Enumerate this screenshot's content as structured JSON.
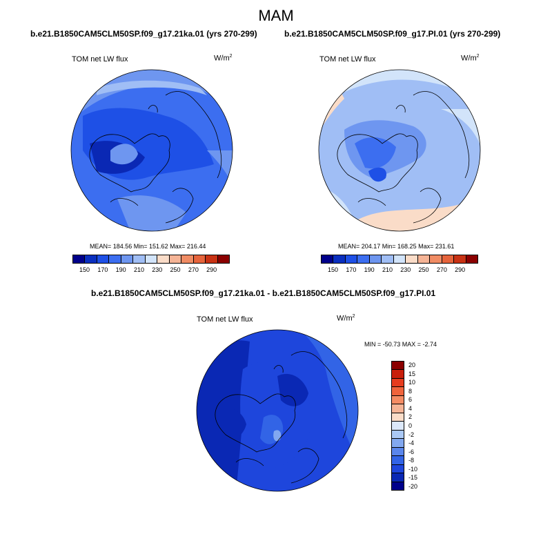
{
  "title": "MAM",
  "panels": [
    {
      "case_title": "b.e21.B1850CAM5CLM50SP.f09_g17.21ka.01 (yrs 270-299)",
      "variable": "TOM net LW flux",
      "units": "W/m",
      "units_sup": "2",
      "stats": "MEAN= 184.56   Min= 151.62   Max= 216.44"
    },
    {
      "case_title": "b.e21.B1850CAM5CLM50SP.f09_g17.PI.01 (yrs 270-299)",
      "variable": "TOM net LW flux",
      "units": "W/m",
      "units_sup": "2",
      "stats": "MEAN= 204.17   Min= 168.25   Max= 231.61"
    }
  ],
  "abs_colorbar": {
    "ticks": [
      "150",
      "170",
      "190",
      "210",
      "230",
      "250",
      "270",
      "290"
    ],
    "colors": [
      "#00008b",
      "#0a2fbf",
      "#1e50e6",
      "#3c6ef0",
      "#6e96f0",
      "#a0bef5",
      "#d2e4fa",
      "#fadcc8",
      "#f5b496",
      "#f08c64",
      "#e6643c",
      "#c83214",
      "#8b0000"
    ]
  },
  "diff_panel": {
    "case_title": "b.e21.B1850CAM5CLM50SP.f09_g17.21ka.01 - b.e21.B1850CAM5CLM50SP.f09_g17.PI.01",
    "variable": "TOM net LW flux",
    "units": "W/m",
    "units_sup": "2",
    "stats": "MIN = -50.73 MAX =  -2.74"
  },
  "diff_colorbar": {
    "ticks": [
      "20",
      "15",
      "10",
      "8",
      "6",
      "4",
      "2",
      "0",
      "-2",
      "-4",
      "-6",
      "-8",
      "-10",
      "-15",
      "-20"
    ],
    "colors": [
      "#8b0000",
      "#c81e0a",
      "#e63c1e",
      "#f0643c",
      "#f58c64",
      "#f5b496",
      "#fadcc8",
      "#dce8fa",
      "#aac8f5",
      "#82a8f0",
      "#5a86ec",
      "#3264e6",
      "#1e46dc",
      "#0a28b4",
      "#00008b"
    ]
  },
  "map_colors": {
    "deep": "#0a28b4",
    "mid": "#1e50e6",
    "light": "#3c6ef0",
    "pale": "#6e96f0",
    "paler": "#a0bef5",
    "palest": "#d2e4fa",
    "peach": "#fadcc8"
  }
}
